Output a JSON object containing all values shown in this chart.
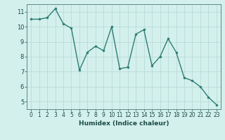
{
  "x": [
    0,
    1,
    2,
    3,
    4,
    5,
    6,
    7,
    8,
    9,
    10,
    11,
    12,
    13,
    14,
    15,
    16,
    17,
    18,
    19,
    20,
    21,
    22,
    23
  ],
  "y": [
    10.5,
    10.5,
    10.6,
    11.2,
    10.2,
    9.9,
    7.1,
    8.3,
    8.7,
    8.4,
    10.0,
    7.2,
    7.3,
    9.5,
    9.8,
    7.4,
    8.0,
    9.2,
    8.3,
    6.6,
    6.4,
    6.0,
    5.3,
    4.8
  ],
  "line_color": "#2d7d74",
  "marker": "o",
  "marker_size": 2.0,
  "linewidth": 1.0,
  "xlabel": "Humidex (Indice chaleur)",
  "xlim": [
    -0.5,
    23.5
  ],
  "ylim": [
    4.5,
    11.5
  ],
  "yticks": [
    5,
    6,
    7,
    8,
    9,
    10,
    11
  ],
  "xticks": [
    0,
    1,
    2,
    3,
    4,
    5,
    6,
    7,
    8,
    9,
    10,
    11,
    12,
    13,
    14,
    15,
    16,
    17,
    18,
    19,
    20,
    21,
    22,
    23
  ],
  "xtick_labels": [
    "0",
    "1",
    "2",
    "3",
    "4",
    "5",
    "6",
    "7",
    "8",
    "9",
    "10",
    "11",
    "12",
    "13",
    "14",
    "15",
    "16",
    "17",
    "18",
    "19",
    "20",
    "21",
    "22",
    "23"
  ],
  "bg_color": "#d4f0ec",
  "grid_color": "#b8dbd7",
  "spine_color": "#5a8a84",
  "tick_color": "#1a4a46",
  "xlabel_fontsize": 6.5,
  "tick_fontsize": 5.5
}
